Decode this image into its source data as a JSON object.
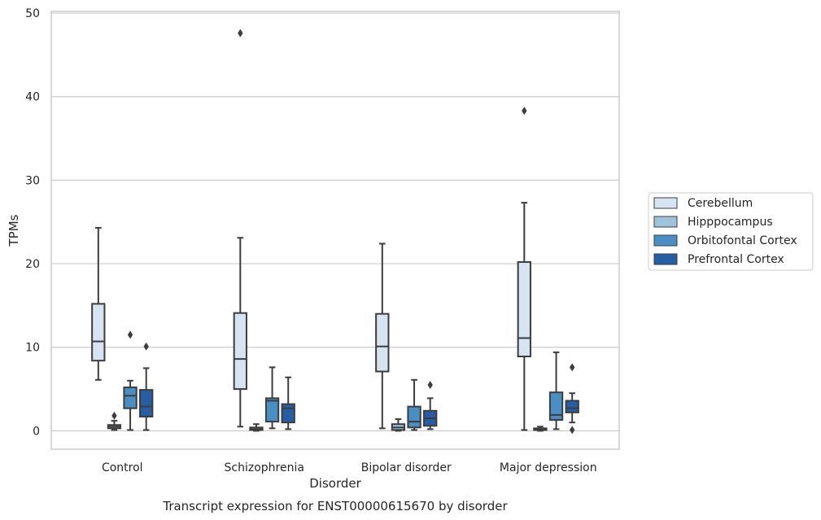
{
  "chart_data": {
    "type": "box",
    "title": "Transcript expression for ENST00000615670 by disorder",
    "xlabel": "Disorder",
    "ylabel": "TPMs",
    "ylim": [
      -2.2,
      50.2
    ],
    "yticks": [
      0,
      10,
      20,
      30,
      40,
      50
    ],
    "grid": "horizontal",
    "legend_position": "right",
    "categories": [
      "Control",
      "Schizophrenia",
      "Bipolar disorder",
      "Major depression"
    ],
    "series": [
      {
        "name": "Cerebellum",
        "color": "#d6e4f2",
        "boxes": [
          {
            "whisker_low": 6.1,
            "q1": 8.4,
            "median": 10.7,
            "q3": 15.2,
            "whisker_high": 24.3,
            "outliers": []
          },
          {
            "whisker_low": 0.5,
            "q1": 5.0,
            "median": 8.6,
            "q3": 14.1,
            "whisker_high": 23.1,
            "outliers": [
              47.6
            ]
          },
          {
            "whisker_low": 0.3,
            "q1": 7.1,
            "median": 10.1,
            "q3": 14.0,
            "whisker_high": 22.4,
            "outliers": []
          },
          {
            "whisker_low": 0.1,
            "q1": 8.9,
            "median": 11.1,
            "q3": 20.2,
            "whisker_high": 27.3,
            "outliers": [
              38.3
            ]
          }
        ]
      },
      {
        "name": "Hipppocampus",
        "color": "#9dc3dc",
        "boxes": [
          {
            "whisker_low": 0.1,
            "q1": 0.3,
            "median": 0.5,
            "q3": 0.7,
            "whisker_high": 1.2,
            "outliers": [
              1.8
            ]
          },
          {
            "whisker_low": 0.0,
            "q1": 0.1,
            "median": 0.2,
            "q3": 0.4,
            "whisker_high": 0.8,
            "outliers": []
          },
          {
            "whisker_low": 0.0,
            "q1": 0.1,
            "median": 0.4,
            "q3": 0.8,
            "whisker_high": 1.4,
            "outliers": []
          },
          {
            "whisker_low": 0.0,
            "q1": 0.1,
            "median": 0.2,
            "q3": 0.3,
            "whisker_high": 0.5,
            "outliers": []
          }
        ]
      },
      {
        "name": "Orbitofontal Cortex",
        "color": "#4a8fc3",
        "boxes": [
          {
            "whisker_low": 0.1,
            "q1": 2.7,
            "median": 4.2,
            "q3": 5.2,
            "whisker_high": 6.0,
            "outliers": [
              11.5
            ]
          },
          {
            "whisker_low": 0.3,
            "q1": 1.1,
            "median": 3.6,
            "q3": 3.9,
            "whisker_high": 7.6,
            "outliers": []
          },
          {
            "whisker_low": 0.1,
            "q1": 0.4,
            "median": 1.1,
            "q3": 2.9,
            "whisker_high": 6.1,
            "outliers": []
          },
          {
            "whisker_low": 0.2,
            "q1": 1.3,
            "median": 1.9,
            "q3": 4.6,
            "whisker_high": 9.4,
            "outliers": []
          }
        ]
      },
      {
        "name": "Prefrontal Cortex",
        "color": "#245fa6",
        "boxes": [
          {
            "whisker_low": 0.1,
            "q1": 1.7,
            "median": 2.9,
            "q3": 4.9,
            "whisker_high": 7.5,
            "outliers": [
              10.1
            ]
          },
          {
            "whisker_low": 0.2,
            "q1": 1.0,
            "median": 2.7,
            "q3": 3.2,
            "whisker_high": 6.4,
            "outliers": []
          },
          {
            "whisker_low": 0.2,
            "q1": 0.6,
            "median": 1.5,
            "q3": 2.4,
            "whisker_high": 3.9,
            "outliers": [
              5.5
            ]
          },
          {
            "whisker_low": 1.0,
            "q1": 2.2,
            "median": 2.7,
            "q3": 3.6,
            "whisker_high": 4.5,
            "outliers": [
              7.6,
              0.1
            ]
          }
        ]
      }
    ]
  }
}
